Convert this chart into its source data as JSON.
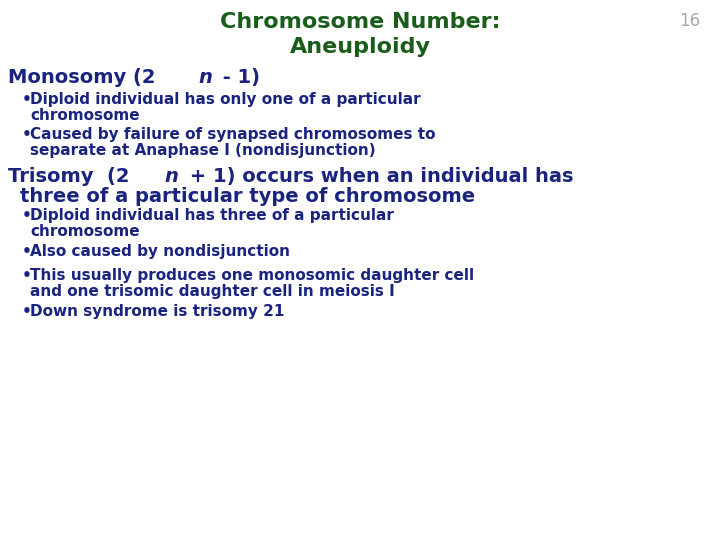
{
  "title_line1": "Chromosome Number:",
  "title_line2": "Aneuploidy",
  "title_color": "#1a5c1a",
  "slide_number": "16",
  "slide_number_color": "#aaaaaa",
  "background_color": "#ffffff",
  "heading1_color": "#1a237e",
  "heading2_color": "#1a237e",
  "bullet_color": "#1a237e",
  "title_fontsize": 16,
  "heading1_fontsize": 14,
  "heading2_fontsize": 14,
  "bullet_fontsize": 11,
  "slide_number_fontsize": 12
}
